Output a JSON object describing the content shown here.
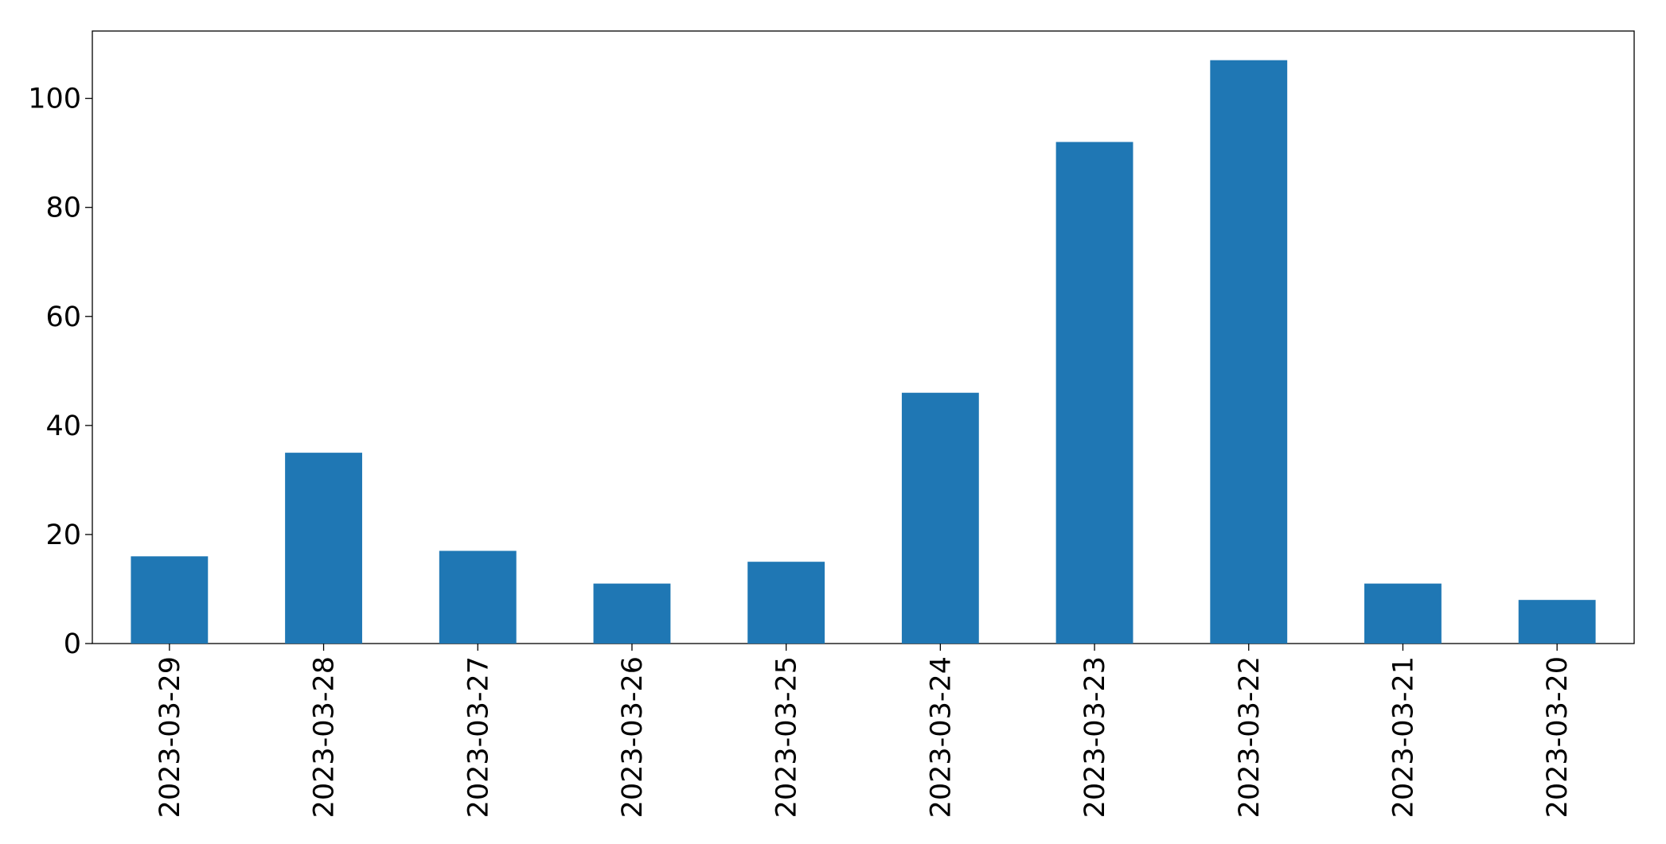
{
  "chart_data": {
    "type": "bar",
    "categories": [
      "2023-03-29",
      "2023-03-28",
      "2023-03-27",
      "2023-03-26",
      "2023-03-25",
      "2023-03-24",
      "2023-03-23",
      "2023-03-22",
      "2023-03-21",
      "2023-03-20"
    ],
    "values": [
      16,
      35,
      17,
      11,
      15,
      46,
      92,
      107,
      11,
      8
    ],
    "color": "#1f77b4",
    "ylim": [
      0,
      112.35
    ],
    "yticks": [
      0,
      20,
      40,
      60,
      80,
      100
    ],
    "grid": false
  }
}
